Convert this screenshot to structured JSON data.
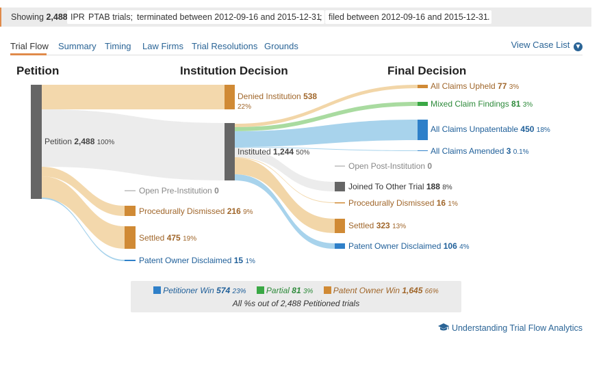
{
  "filter": {
    "showing_prefix": "Showing",
    "count": "2,488",
    "type_chip": "IPR",
    "board_chip": "PTAB trials;",
    "terminated_chip": "terminated between 2012-09-16 and 2015-12-31",
    "separator": ";",
    "filed_chip": "filed between 2012-09-16 and 2015-12-31",
    "end": "."
  },
  "tabs": [
    {
      "label": "Trial Flow",
      "active": true
    },
    {
      "label": "Summary"
    },
    {
      "label": "Timing"
    },
    {
      "label": "Law Firms"
    },
    {
      "label": "Trial Resolutions"
    },
    {
      "label": "Grounds"
    }
  ],
  "view_case_list": "View Case List",
  "columns": {
    "petition": "Petition",
    "institution": "Institution Decision",
    "final": "Final Decision"
  },
  "nodes": {
    "petition": {
      "name": "Petition",
      "value": "2,488",
      "pct": "100%"
    },
    "open_pre": {
      "name": "Open Pre-Institution",
      "value": "0"
    },
    "proc_dismissed_pre": {
      "name": "Procedurally Dismissed",
      "value": "216",
      "pct": "9%"
    },
    "settled_pre": {
      "name": "Settled",
      "value": "475",
      "pct": "19%"
    },
    "po_disclaimed_pre": {
      "name": "Patent Owner Disclaimed",
      "value": "15",
      "pct": "1%"
    },
    "denied": {
      "name": "Denied Institution",
      "value": "538",
      "pct": "22%"
    },
    "instituted": {
      "name": "Instituted",
      "value": "1,244",
      "pct": "50%"
    },
    "upheld": {
      "name": "All Claims Upheld",
      "value": "77",
      "pct": "3%"
    },
    "mixed": {
      "name": "Mixed Claim Findings",
      "value": "81",
      "pct": "3%"
    },
    "unpatentable": {
      "name": "All Claims Unpatentable",
      "value": "450",
      "pct": "18%"
    },
    "amended": {
      "name": "All Claims Amended",
      "value": "3",
      "pct": "0.1%"
    },
    "open_post": {
      "name": "Open Post-Institution",
      "value": "0"
    },
    "joined": {
      "name": "Joined To Other Trial",
      "value": "188",
      "pct": "8%"
    },
    "proc_dismissed_post": {
      "name": "Procedurally Dismissed",
      "value": "16",
      "pct": "1%"
    },
    "settled_post": {
      "name": "Settled",
      "value": "323",
      "pct": "13%"
    },
    "po_disclaimed_post": {
      "name": "Patent Owner Disclaimed",
      "value": "106",
      "pct": "4%"
    }
  },
  "legend": {
    "petitioner": {
      "name": "Petitioner Win",
      "value": "574",
      "pct": "23%"
    },
    "partial": {
      "name": "Partial",
      "value": "81",
      "pct": "3%"
    },
    "owner": {
      "name": "Patent Owner Win",
      "value": "1,645",
      "pct": "66%"
    },
    "note": "All %s out of 2,488 Petitioned trials"
  },
  "understanding_link": "Understanding Trial Flow Analytics",
  "colors": {
    "gray_node": "#666666",
    "gray_flow": "#ececec",
    "orange_node": "#d08a35",
    "orange_flow": "#f2d6a8",
    "green_node": "#3aa845",
    "green_flow": "#a9dba0",
    "blue_node": "#2f80c9",
    "blue_flow": "#a8d3ec"
  }
}
